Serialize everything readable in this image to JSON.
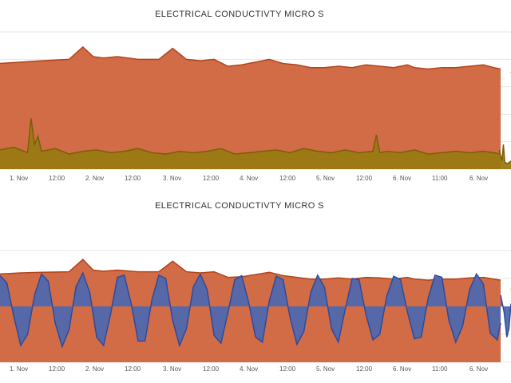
{
  "colors": {
    "ec_fill": "#d0643c",
    "ec_line": "#b0441c",
    "secondary_fill": "#9a7a14",
    "secondary_line": "#7a5e08",
    "diff_fill": "#4f68ad",
    "diff_line": "#2f4a9a",
    "gridline": "#e6e6e6",
    "background": "#ffffff"
  },
  "chart_data": [
    {
      "type": "area",
      "title": "ELECTRICAL CONDUCTIVTY MICRO S",
      "x_tick_labels": [
        "1. Nov",
        "12:00",
        "2. Nov",
        "12:00",
        "3. Nov",
        "12:00",
        "4. Nov",
        "12:00",
        "5. Nov",
        "12:00",
        "6. Nov",
        "11:00",
        "6. Nov"
      ],
      "xlim": [
        0,
        148
      ],
      "ylim": [
        0,
        100
      ],
      "grid": true,
      "series": [
        {
          "role": "main",
          "x": [
            0,
            6,
            12,
            20,
            24,
            27,
            30,
            34,
            40,
            46,
            50,
            54,
            58,
            62,
            66,
            70,
            74,
            78,
            82,
            86,
            90,
            94,
            98,
            102,
            106,
            110,
            114,
            118,
            120,
            124,
            128,
            132,
            136,
            140,
            143,
            145
          ],
          "values": [
            77,
            78,
            79,
            80,
            89,
            82,
            81,
            82,
            80,
            80,
            88,
            80,
            79,
            80,
            75,
            76,
            78,
            80,
            77,
            76,
            74,
            74,
            75,
            74,
            76,
            75,
            74,
            76,
            74,
            73,
            74,
            74,
            75,
            76,
            74,
            73
          ]
        },
        {
          "role": "secondary",
          "x": [
            0,
            4,
            8,
            9,
            10,
            11,
            12,
            16,
            20,
            24,
            28,
            32,
            36,
            40,
            44,
            48,
            52,
            56,
            60,
            64,
            68,
            72,
            76,
            80,
            84,
            88,
            92,
            96,
            100,
            104,
            108,
            109,
            110,
            112,
            116,
            120,
            124,
            128,
            132,
            136,
            140,
            143,
            145
          ],
          "values": [
            14,
            16,
            12,
            37,
            18,
            24,
            13,
            15,
            11,
            13,
            14,
            12,
            13,
            15,
            12,
            11,
            13,
            12,
            13,
            15,
            11,
            12,
            13,
            14,
            12,
            15,
            13,
            12,
            14,
            12,
            13,
            25,
            12,
            13,
            12,
            14,
            11,
            12,
            13,
            12,
            13,
            12,
            11
          ]
        },
        {
          "role": "main-after-gap",
          "x": [
            148,
            150
          ],
          "values": [
            70,
            80
          ]
        },
        {
          "role": "secondary-after-gap",
          "x": [
            144.6,
            145.4,
            145.8,
            146.2,
            147,
            148
          ],
          "values": [
            14,
            6,
            18,
            5,
            4,
            6
          ]
        }
      ]
    },
    {
      "type": "area",
      "title": "ELECTRICAL CONDUCTIVTY MICRO S",
      "x_tick_labels": [
        "1. Nov",
        "12:00",
        "2. Nov",
        "12:00",
        "3. Nov",
        "12:00",
        "4. Nov",
        "12:00",
        "5. Nov",
        "12:00",
        "6. Nov",
        "11:00",
        "6. Nov"
      ],
      "xlim": [
        0,
        148
      ],
      "ylim": [
        -100,
        100
      ],
      "grid": true,
      "series": [
        {
          "role": "main",
          "x": [
            0,
            6,
            12,
            20,
            24,
            27,
            30,
            34,
            40,
            46,
            50,
            54,
            58,
            62,
            66,
            70,
            74,
            78,
            82,
            86,
            90,
            94,
            98,
            102,
            106,
            110,
            114,
            118,
            120,
            124,
            128,
            132,
            136,
            140,
            143,
            145
          ],
          "values": [
            58,
            60,
            61,
            62,
            84,
            65,
            63,
            65,
            62,
            62,
            81,
            62,
            60,
            62,
            52,
            53,
            57,
            61,
            55,
            52,
            49,
            49,
            51,
            49,
            52,
            51,
            49,
            52,
            49,
            47,
            49,
            49,
            51,
            52,
            49,
            47
          ]
        },
        {
          "role": "oscillation",
          "x": [
            0,
            2,
            4,
            6,
            8,
            10,
            12,
            14,
            16,
            18,
            20,
            22,
            24,
            26,
            28,
            30,
            32,
            34,
            36,
            38,
            40,
            42,
            44,
            46,
            48,
            50,
            52,
            54,
            56,
            58,
            60,
            62,
            64,
            66,
            68,
            70,
            72,
            74,
            76,
            78,
            80,
            82,
            84,
            86,
            88,
            90,
            92,
            94,
            96,
            98,
            100,
            102,
            104,
            106,
            108,
            110,
            112,
            114,
            116,
            118,
            120,
            122,
            124,
            126,
            128,
            130,
            132,
            134,
            136,
            138,
            140,
            142,
            144,
            145
          ],
          "values": [
            55,
            42,
            -18,
            -70,
            -50,
            20,
            58,
            45,
            -30,
            -72,
            -42,
            35,
            60,
            25,
            -55,
            -70,
            -15,
            52,
            56,
            5,
            -62,
            -62,
            12,
            56,
            50,
            -25,
            -70,
            -40,
            35,
            58,
            30,
            -52,
            -66,
            -12,
            48,
            55,
            8,
            -55,
            -64,
            10,
            54,
            48,
            -20,
            -68,
            -45,
            25,
            56,
            34,
            -40,
            -64,
            -5,
            50,
            48,
            -15,
            -60,
            -50,
            18,
            54,
            48,
            -10,
            -58,
            -55,
            15,
            56,
            52,
            -25,
            -64,
            -35,
            30,
            58,
            40,
            -48,
            -60,
            -30
          ]
        },
        {
          "role": "main-after-gap",
          "x": [
            148,
            150
          ],
          "values": [
            30,
            55
          ]
        },
        {
          "role": "oscillation-after-gap",
          "x": [
            145,
            146,
            146.8,
            147.4,
            148
          ],
          "values": [
            20,
            -10,
            -55,
            -40,
            5
          ]
        }
      ]
    }
  ]
}
